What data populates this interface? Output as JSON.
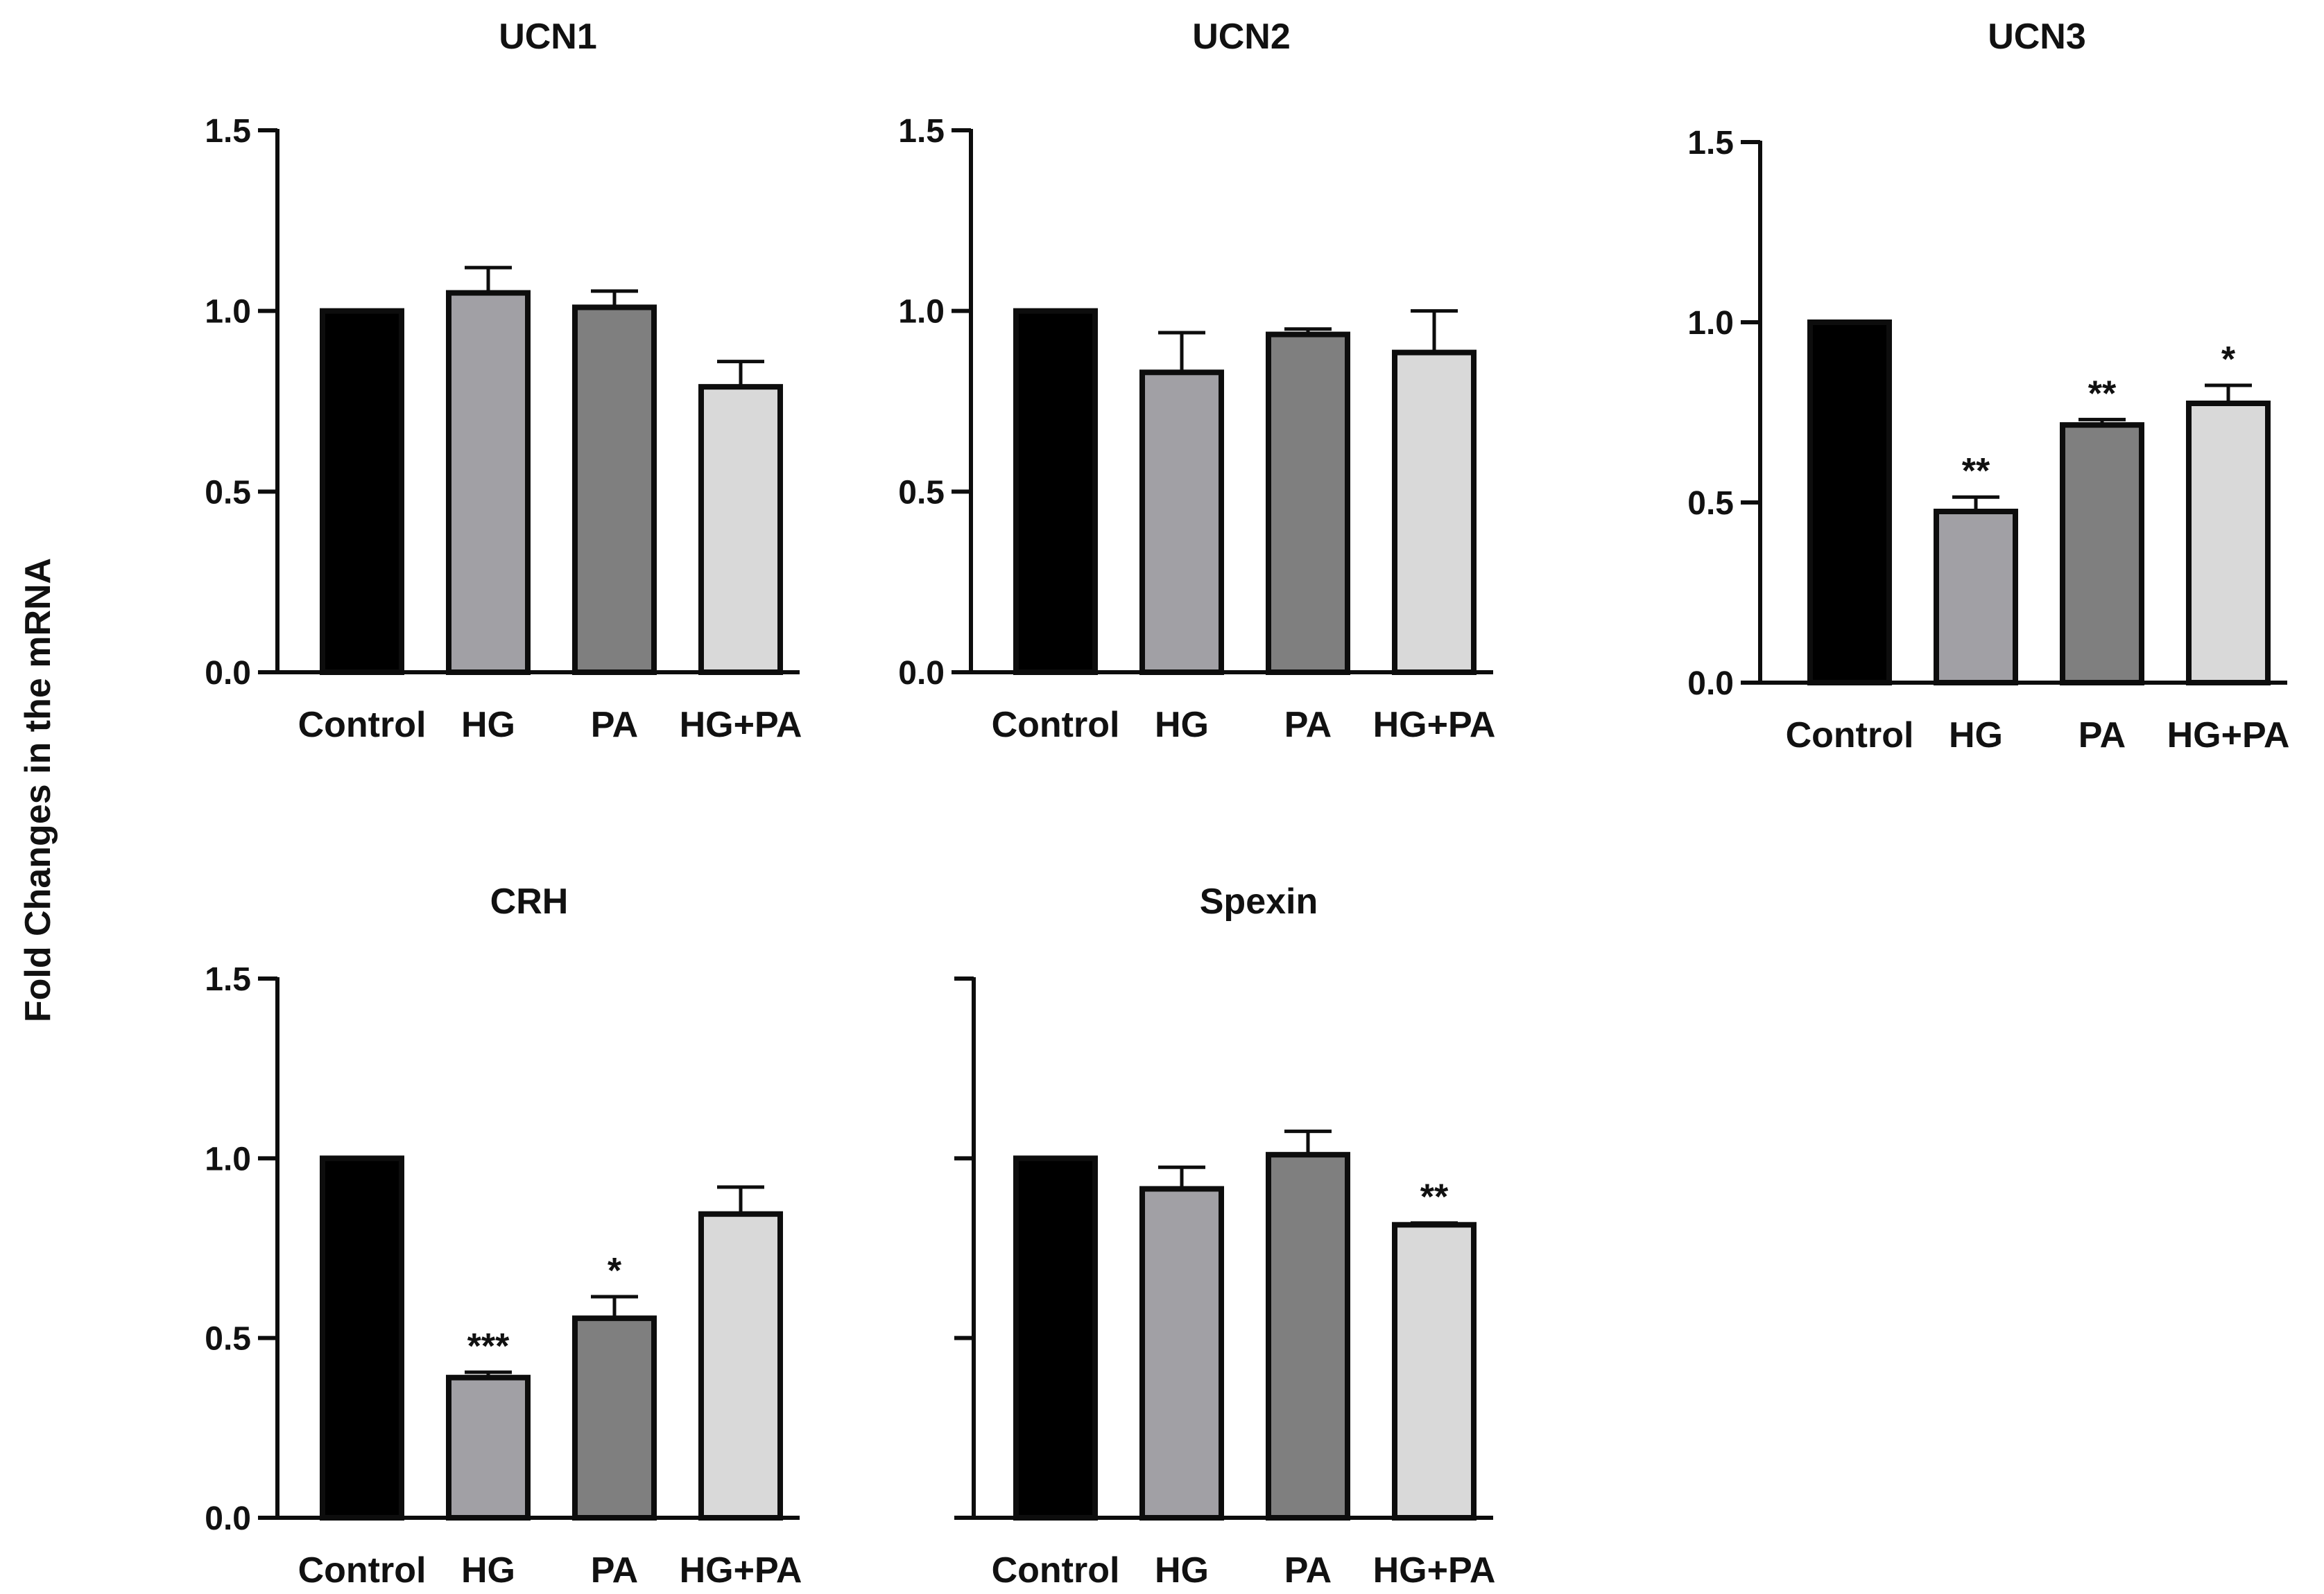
{
  "figure": {
    "y_axis_label": "Fold Changes in the mRNA"
  },
  "colors": {
    "Control": "#000000",
    "HG": "#a1a0a5",
    "PA": "#7f7f7f",
    "HG+PA": "#d9d9d9",
    "outline": "#0d0d0d"
  },
  "chart_data": [
    {
      "type": "bar",
      "title": "UCN1",
      "categories": [
        "Control",
        "HG",
        "PA",
        "HG+PA"
      ],
      "values": [
        1.0,
        1.05,
        1.01,
        0.79
      ],
      "errors": [
        0.0,
        0.07,
        0.045,
        0.07
      ],
      "significance": [
        "",
        "",
        "",
        ""
      ],
      "ylim": [
        0,
        1.5
      ],
      "yticks": [
        "0.0",
        "0.5",
        "1.0",
        "1.5"
      ],
      "xlabel": "",
      "ylabel": ""
    },
    {
      "type": "bar",
      "title": "UCN2",
      "categories": [
        "Control",
        "HG",
        "PA",
        "HG+PA"
      ],
      "values": [
        1.0,
        0.83,
        0.935,
        0.885
      ],
      "errors": [
        0.0,
        0.11,
        0.015,
        0.115
      ],
      "significance": [
        "",
        "",
        "",
        ""
      ],
      "ylim": [
        0,
        1.5
      ],
      "yticks": [
        "0.0",
        "0.5",
        "1.0",
        "1.5"
      ],
      "xlabel": "",
      "ylabel": ""
    },
    {
      "type": "bar",
      "title": "UCN3",
      "categories": [
        "Control",
        "HG",
        "PA",
        "HG+PA"
      ],
      "values": [
        1.0,
        0.475,
        0.715,
        0.775
      ],
      "errors": [
        0.0,
        0.04,
        0.015,
        0.05
      ],
      "significance": [
        "",
        "**",
        "**",
        "*"
      ],
      "ylim": [
        0,
        1.5
      ],
      "yticks": [
        "0.0",
        "0.5",
        "1.0",
        "1.5"
      ],
      "xlabel": "",
      "ylabel": ""
    },
    {
      "type": "bar",
      "title": "CRH",
      "categories": [
        "Control",
        "HG",
        "PA",
        "HG+PA"
      ],
      "values": [
        1.0,
        0.39,
        0.555,
        0.845
      ],
      "errors": [
        0.0,
        0.015,
        0.06,
        0.075
      ],
      "significance": [
        "",
        "***",
        "*",
        ""
      ],
      "ylim": [
        0,
        1.5
      ],
      "yticks": [
        "0.0",
        "0.5",
        "1.0",
        "1.5"
      ],
      "xlabel": "",
      "ylabel": ""
    },
    {
      "type": "bar",
      "title": "Spexin",
      "categories": [
        "Control",
        "HG",
        "PA",
        "HG+PA"
      ],
      "values": [
        1.0,
        0.915,
        1.01,
        0.815
      ],
      "errors": [
        0.0,
        0.06,
        0.065,
        0.005
      ],
      "significance": [
        "",
        "",
        "",
        "**"
      ],
      "ylim": [
        0,
        1.5
      ],
      "yticks": [
        "",
        "",
        "",
        ""
      ],
      "xlabel": "",
      "ylabel": ""
    }
  ]
}
